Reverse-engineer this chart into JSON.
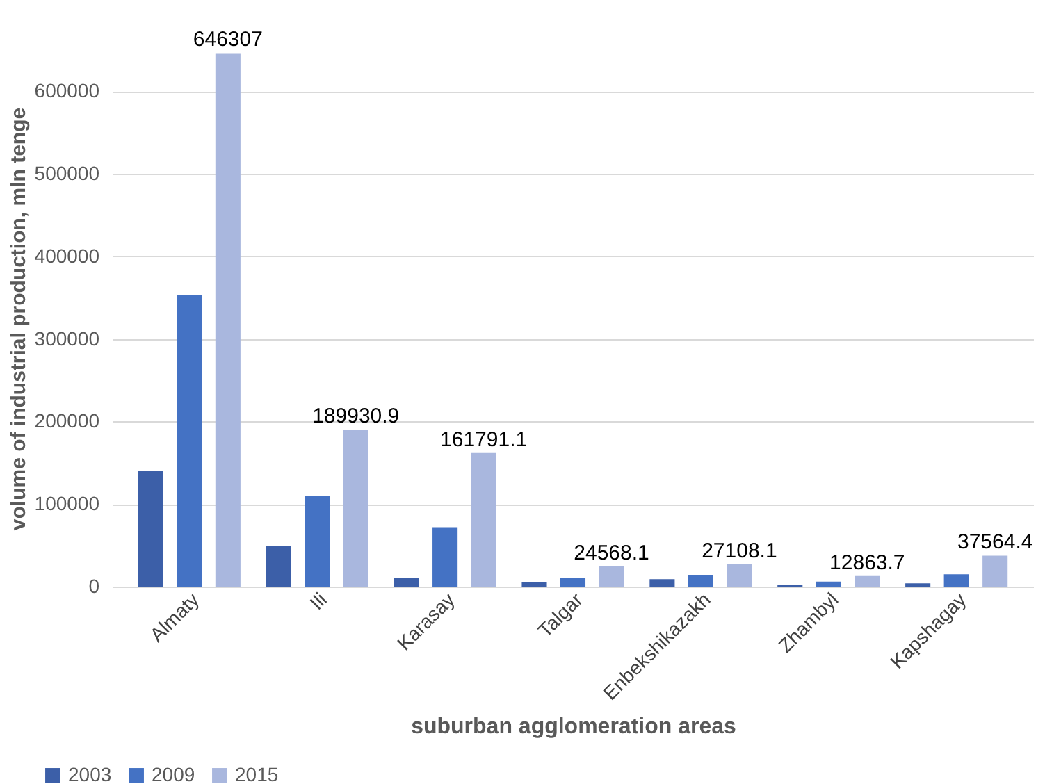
{
  "chart_data": {
    "type": "bar",
    "xlabel": "suburban agglomeration areas",
    "ylabel": "volume of industrial production, mln tenge",
    "categories": [
      "Almaty",
      "Ili",
      "Karasay",
      "Talgar",
      "Enbekshikazakh",
      "Zhambyl",
      "Kapshagay"
    ],
    "series": [
      {
        "name": "2003",
        "color": "#3c5fa8",
        "values": [
          140000,
          49000,
          11000,
          5000,
          9000,
          2000,
          4000
        ]
      },
      {
        "name": "2009",
        "color": "#4472c4",
        "values": [
          353000,
          110000,
          72000,
          11000,
          14000,
          6000,
          15000
        ]
      },
      {
        "name": "2015",
        "color": "#a9b7de",
        "values": [
          646307,
          189930.9,
          161791.1,
          24568.1,
          27108.1,
          12863.7,
          37564.4
        ],
        "value_labels": [
          "646307",
          "189930.9",
          "161791.1",
          "24568.1",
          "27108.1",
          "12863.7",
          "37564.4"
        ]
      }
    ],
    "ylim": [
      0,
      650000
    ],
    "yticks": [
      0,
      100000,
      200000,
      300000,
      400000,
      500000,
      600000
    ],
    "grid": "y",
    "legend": "bottom left"
  }
}
